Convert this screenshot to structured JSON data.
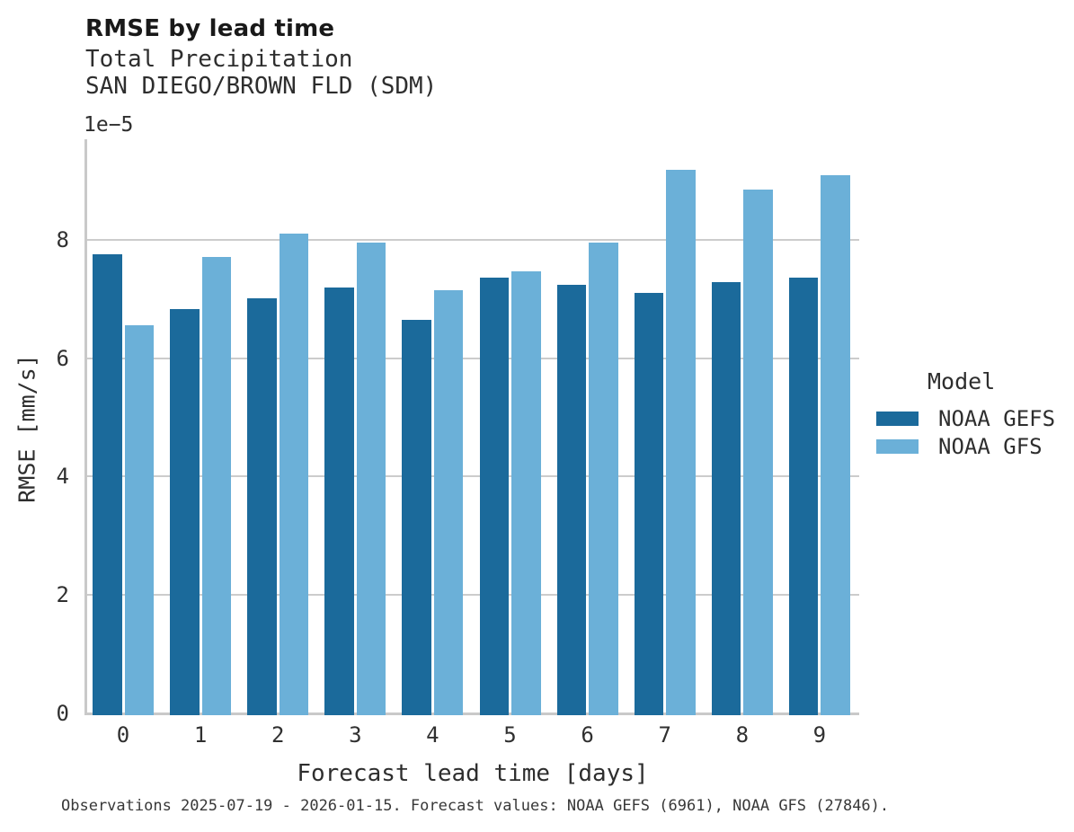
{
  "title": "RMSE by lead time",
  "caption": "Observations 2025-07-19 - 2026-01-15. Forecast values: NOAA GEFS (6961), NOAA GFS (27846).",
  "chart_data": {
    "type": "bar",
    "title": "RMSE by lead time",
    "subtitle": [
      "Total Precipitation",
      "SAN DIEGO/BROWN FLD (SDM)"
    ],
    "xlabel": "Forecast lead time [days]",
    "ylabel": "RMSE [mm/s]",
    "y_scale_label": "1e−5",
    "y_scale_factor": "1e-5",
    "categories": [
      "0",
      "1",
      "2",
      "3",
      "4",
      "5",
      "6",
      "7",
      "8",
      "9"
    ],
    "series": [
      {
        "name": "NOAA GEFS",
        "color": "#1b6a9b",
        "values": [
          7.76,
          6.83,
          7.02,
          7.19,
          6.65,
          7.37,
          7.24,
          7.1,
          7.28,
          7.37
        ]
      },
      {
        "name": "NOAA GFS",
        "color": "#6bb0d8",
        "values": [
          6.56,
          7.71,
          8.11,
          7.95,
          7.15,
          7.47,
          7.95,
          9.19,
          8.85,
          9.1
        ]
      }
    ],
    "values_unit": "1e-5 mm/s",
    "ylim": [
      0,
      9.7
    ],
    "yticks": [
      0,
      2,
      4,
      6,
      8
    ],
    "grid": "horizontal",
    "legend_title": "Model",
    "legend_position": "center-right"
  },
  "colors": {
    "background": "#ffffff",
    "axis_line": "#c9c9c9",
    "gridline": "#cccccc",
    "title_text": "#191919",
    "body_text": "#2e2e2e",
    "gefs_blue": "#1b6a9b",
    "gfs_light_blue": "#6bb0d8"
  }
}
